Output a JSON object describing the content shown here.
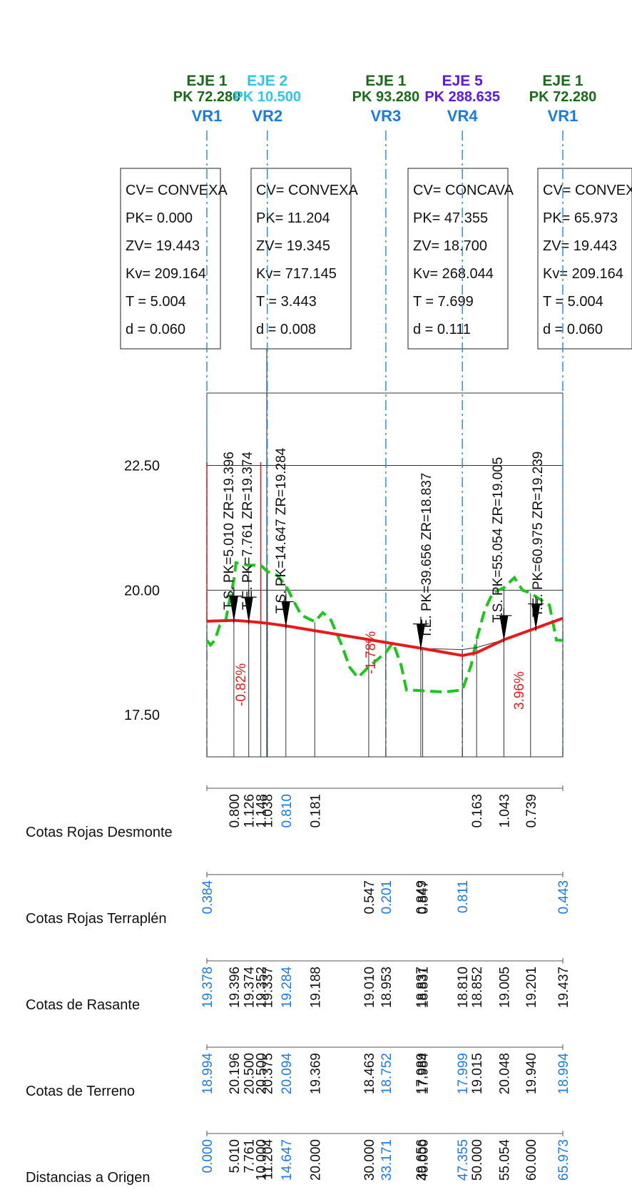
{
  "colors": {
    "green_label": "#1a6a1a",
    "cyan_label": "#2ec6e6",
    "purple_label": "#5a1ae6",
    "blue_label": "#1a7ae6",
    "grade_line": "#e61a1a",
    "terrain_line": "#1ac81a",
    "axis_line": "#1a8ae6",
    "table_text": "#111111"
  },
  "vertices": [
    {
      "eje": "EJE 1",
      "pk": "PK 72.280",
      "name": "VR1",
      "eje_color": "green"
    },
    {
      "eje": "EJE 2",
      "pk": "PK 10.500",
      "name": "VR2",
      "eje_color": "cyan"
    },
    {
      "eje": "EJE 1",
      "pk": "PK 93.280",
      "name": "VR3",
      "eje_color": "green"
    },
    {
      "eje": "EJE 5",
      "pk": "PK 288.635",
      "name": "VR4",
      "eje_color": "purple"
    },
    {
      "eje": "EJE 1",
      "pk": "PK 72.280",
      "name": "VR1",
      "eje_color": "green"
    }
  ],
  "curve_boxes": [
    {
      "lines": [
        "CV= CONVEXA",
        "PK= 0.000",
        "ZV= 19.443",
        "Kv= 209.164",
        "T =  5.004",
        "d =  0.060"
      ]
    },
    {
      "lines": [
        "CV= CONVEXA",
        "PK= 11.204",
        "ZV= 19.345",
        "Kv= 717.145",
        "T =  3.443",
        "d =  0.008"
      ]
    },
    {
      "lines": [
        "CV= CONCAVA",
        "PK= 47.355",
        "ZV= 18.700",
        "Kv= 268.044",
        "T =  7.699",
        "d =  0.111"
      ]
    },
    {
      "lines": [
        "CV= CONVEXA",
        "PK= 65.973",
        "ZV= 19.443",
        "Kv= 209.164",
        "T =  5.004",
        "d =  0.060"
      ]
    }
  ],
  "elevation_labels": [
    "22.50",
    "20.00",
    "17.50"
  ],
  "curve_markers": [
    {
      "text": "T.S. PK=5.010 ZR=19.396"
    },
    {
      "text": "T.E. PK=7.761 ZR=19.374"
    },
    {
      "text": "T.S. PK=14.647 ZR=19.284"
    },
    {
      "text": "T.E. PK=39.656 ZR=18.837"
    },
    {
      "text": "T.S. PK=55.054 ZR=19.005"
    },
    {
      "text": "T.E. PK=60.975 ZR=19.239"
    }
  ],
  "grades": [
    {
      "text": "-0.82%"
    },
    {
      "text": "-1.78%"
    },
    {
      "text": "3.96%"
    }
  ],
  "profile_series": {
    "pk_range": [
      0,
      65.973
    ],
    "elevation_range": [
      16.66,
      23.95
    ],
    "rasante": [
      [
        0,
        19.378
      ],
      [
        5.01,
        19.396
      ],
      [
        7.761,
        19.374
      ],
      [
        10.0,
        19.352
      ],
      [
        11.204,
        19.337
      ],
      [
        14.647,
        19.284
      ],
      [
        20.0,
        19.188
      ],
      [
        30.0,
        19.01
      ],
      [
        33.171,
        18.953
      ],
      [
        39.656,
        18.837
      ],
      [
        40.0,
        18.831
      ],
      [
        47.355,
        18.81
      ],
      [
        50.0,
        18.852
      ],
      [
        55.054,
        19.005
      ],
      [
        60.0,
        19.201
      ],
      [
        65.973,
        19.437
      ]
    ],
    "terreno": [
      [
        0,
        18.994
      ],
      [
        0.7,
        18.9
      ],
      [
        1.5,
        19.0
      ],
      [
        2.4,
        19.3
      ],
      [
        3.5,
        19.4
      ],
      [
        4.4,
        19.9
      ],
      [
        5.01,
        20.196
      ],
      [
        5.4,
        20.55
      ],
      [
        7.761,
        20.5
      ],
      [
        10.0,
        20.5
      ],
      [
        11.204,
        20.375
      ],
      [
        13.0,
        20.3
      ],
      [
        14.647,
        20.094
      ],
      [
        16.0,
        19.8
      ],
      [
        17.5,
        19.5
      ],
      [
        20.0,
        19.369
      ],
      [
        21.5,
        19.55
      ],
      [
        23.0,
        19.4
      ],
      [
        25.0,
        18.9
      ],
      [
        26.5,
        18.45
      ],
      [
        28.0,
        18.25
      ],
      [
        30.0,
        18.463
      ],
      [
        33.171,
        18.752
      ],
      [
        34.5,
        18.95
      ],
      [
        36.0,
        18.5
      ],
      [
        37.0,
        18.0
      ],
      [
        39.656,
        17.989
      ],
      [
        40.0,
        17.984
      ],
      [
        44.0,
        17.96
      ],
      [
        47.355,
        17.999
      ],
      [
        49.0,
        18.5
      ],
      [
        50.0,
        19.015
      ],
      [
        51.5,
        19.6
      ],
      [
        53.0,
        19.95
      ],
      [
        55.054,
        20.048
      ],
      [
        57.0,
        20.25
      ],
      [
        58.5,
        20.0
      ],
      [
        60.0,
        19.94
      ],
      [
        62.0,
        19.8
      ],
      [
        63.5,
        19.7
      ],
      [
        64.8,
        19.0
      ],
      [
        65.973,
        18.994
      ]
    ]
  },
  "table": {
    "row_labels": [
      "Cotas Rojas Desmonte",
      "Cotas Rojas Terraplén",
      "Cotas de Rasante",
      "Cotas de Terreno",
      "Distancias a Origen"
    ],
    "desmonte": [
      {
        "pk": 5.01,
        "v": "0.800",
        "c": 0
      },
      {
        "pk": 7.761,
        "v": "1.126",
        "c": 0
      },
      {
        "pk": 10.0,
        "v": "1.148",
        "c": 0
      },
      {
        "pk": 11.204,
        "v": "1.038",
        "c": 0
      },
      {
        "pk": 14.647,
        "v": "0.810",
        "c": 1
      },
      {
        "pk": 20.0,
        "v": "0.181",
        "c": 0
      },
      {
        "pk": 50.0,
        "v": "0.163",
        "c": 0
      },
      {
        "pk": 55.054,
        "v": "1.043",
        "c": 0
      },
      {
        "pk": 60.0,
        "v": "0.739",
        "c": 0
      }
    ],
    "terraplen": [
      {
        "pk": 0.0,
        "v": "0.384",
        "c": 1
      },
      {
        "pk": 30.0,
        "v": "0.547",
        "c": 0
      },
      {
        "pk": 33.171,
        "v": "0.201",
        "c": 1
      },
      {
        "pk": 39.656,
        "v": "0.849",
        "c": 0
      },
      {
        "pk": 40.0,
        "v": "0.847",
        "c": 0
      },
      {
        "pk": 47.355,
        "v": "0.811",
        "c": 1
      },
      {
        "pk": 65.973,
        "v": "0.443",
        "c": 1
      }
    ],
    "rasante": [
      {
        "pk": 0.0,
        "v": "19.378",
        "c": 1
      },
      {
        "pk": 5.01,
        "v": "19.396",
        "c": 0
      },
      {
        "pk": 7.761,
        "v": "19.374",
        "c": 0
      },
      {
        "pk": 10.0,
        "v": "19.352",
        "c": 0
      },
      {
        "pk": 11.204,
        "v": "19.337",
        "c": 0
      },
      {
        "pk": 14.647,
        "v": "19.284",
        "c": 1
      },
      {
        "pk": 20.0,
        "v": "19.188",
        "c": 0
      },
      {
        "pk": 30.0,
        "v": "19.010",
        "c": 0
      },
      {
        "pk": 33.171,
        "v": "18.953",
        "c": 0
      },
      {
        "pk": 39.656,
        "v": "18.837",
        "c": 0
      },
      {
        "pk": 40.0,
        "v": "18.831",
        "c": 0
      },
      {
        "pk": 47.355,
        "v": "18.810",
        "c": 0
      },
      {
        "pk": 50.0,
        "v": "18.852",
        "c": 0
      },
      {
        "pk": 55.054,
        "v": "19.005",
        "c": 0
      },
      {
        "pk": 60.0,
        "v": "19.201",
        "c": 0
      },
      {
        "pk": 65.973,
        "v": "19.437",
        "c": 0
      }
    ],
    "terreno": [
      {
        "pk": 0.0,
        "v": "18.994",
        "c": 1
      },
      {
        "pk": 5.01,
        "v": "20.196",
        "c": 0
      },
      {
        "pk": 7.761,
        "v": "20.500",
        "c": 0
      },
      {
        "pk": 10.0,
        "v": "20.500",
        "c": 0
      },
      {
        "pk": 11.204,
        "v": "20.375",
        "c": 0
      },
      {
        "pk": 14.647,
        "v": "20.094",
        "c": 1
      },
      {
        "pk": 20.0,
        "v": "19.369",
        "c": 0
      },
      {
        "pk": 30.0,
        "v": "18.463",
        "c": 0
      },
      {
        "pk": 33.171,
        "v": "18.752",
        "c": 1
      },
      {
        "pk": 39.656,
        "v": "17.989",
        "c": 0
      },
      {
        "pk": 40.0,
        "v": "17.984",
        "c": 0
      },
      {
        "pk": 47.355,
        "v": "17.999",
        "c": 1
      },
      {
        "pk": 50.0,
        "v": "19.015",
        "c": 0
      },
      {
        "pk": 55.054,
        "v": "20.048",
        "c": 0
      },
      {
        "pk": 60.0,
        "v": "19.940",
        "c": 0
      },
      {
        "pk": 65.973,
        "v": "18.994",
        "c": 1
      }
    ],
    "distancias": [
      {
        "pk": 0.0,
        "v": "0.000",
        "c": 1
      },
      {
        "pk": 5.01,
        "v": "5.010",
        "c": 0
      },
      {
        "pk": 7.761,
        "v": "7.761",
        "c": 0
      },
      {
        "pk": 10.0,
        "v": "10.000",
        "c": 0
      },
      {
        "pk": 11.204,
        "v": "11.204",
        "c": 0
      },
      {
        "pk": 14.647,
        "v": "14.647",
        "c": 1
      },
      {
        "pk": 20.0,
        "v": "20.000",
        "c": 0
      },
      {
        "pk": 30.0,
        "v": "30.000",
        "c": 0
      },
      {
        "pk": 33.171,
        "v": "33.171",
        "c": 1
      },
      {
        "pk": 39.656,
        "v": "39.656",
        "c": 0
      },
      {
        "pk": 40.0,
        "v": "40.000",
        "c": 0
      },
      {
        "pk": 47.355,
        "v": "47.355",
        "c": 1
      },
      {
        "pk": 50.0,
        "v": "50.000",
        "c": 0
      },
      {
        "pk": 55.054,
        "v": "55.054",
        "c": 0
      },
      {
        "pk": 60.0,
        "v": "60.000",
        "c": 0
      },
      {
        "pk": 65.973,
        "v": "65.973",
        "c": 1
      }
    ]
  }
}
